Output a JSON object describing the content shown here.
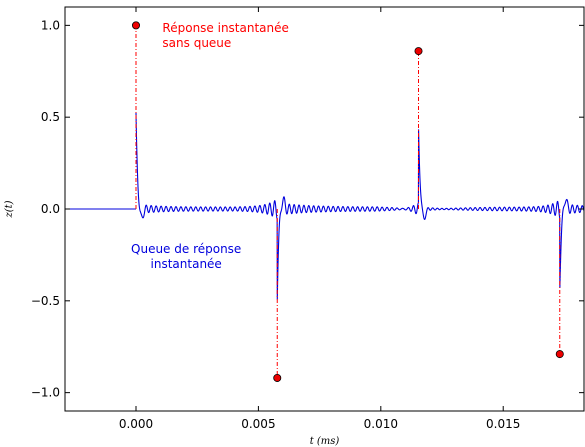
{
  "chart_data": {
    "type": "line",
    "xlabel": "t (ms)",
    "ylabel": "z(t)",
    "xlim": [
      -0.0029,
      0.0183
    ],
    "ylim": [
      -1.1,
      1.1
    ],
    "x_ticks": [
      0.0,
      0.005,
      0.01,
      0.015
    ],
    "x_tick_labels": [
      "0.000",
      "0.005",
      "0.010",
      "0.015"
    ],
    "y_ticks": [
      1.0,
      0.5,
      0.0,
      -0.5,
      -1.0
    ],
    "y_tick_labels": [
      "1.0",
      "0.5",
      "0.0",
      "−0.5",
      "−1.0"
    ],
    "grid": false,
    "colors": {
      "signal": "#0000dd",
      "impulse": "#ff0000",
      "marker_fill": "#ee0000",
      "marker_edge": "#000000",
      "frame": "#000000"
    },
    "series": [
      {
        "kind": "signal",
        "pulses": [
          {
            "t": 0.0,
            "amp": 0.5
          },
          {
            "t": 0.00577,
            "amp": -0.47
          },
          {
            "t": 0.01154,
            "amp": 0.44
          },
          {
            "t": 0.01731,
            "amp": -0.43
          }
        ],
        "ripple_amplitude": 0.05
      },
      {
        "kind": "impulses",
        "points": [
          {
            "x": 0.0,
            "y": 1.0
          },
          {
            "x": 0.00577,
            "y": -0.92
          },
          {
            "x": 0.01154,
            "y": 0.86
          },
          {
            "x": 0.01731,
            "y": -0.79
          }
        ]
      }
    ],
    "annotations": [
      {
        "lines": [
          "Réponse instantanée",
          "sans queue"
        ],
        "color": "#ff0000",
        "x": 0.00108,
        "y": 0.965,
        "align": "start"
      },
      {
        "lines": [
          "Queue de réponse",
          "instantanée"
        ],
        "color": "#0000dd",
        "x": 0.00205,
        "y": -0.24,
        "align": "middle"
      }
    ]
  }
}
